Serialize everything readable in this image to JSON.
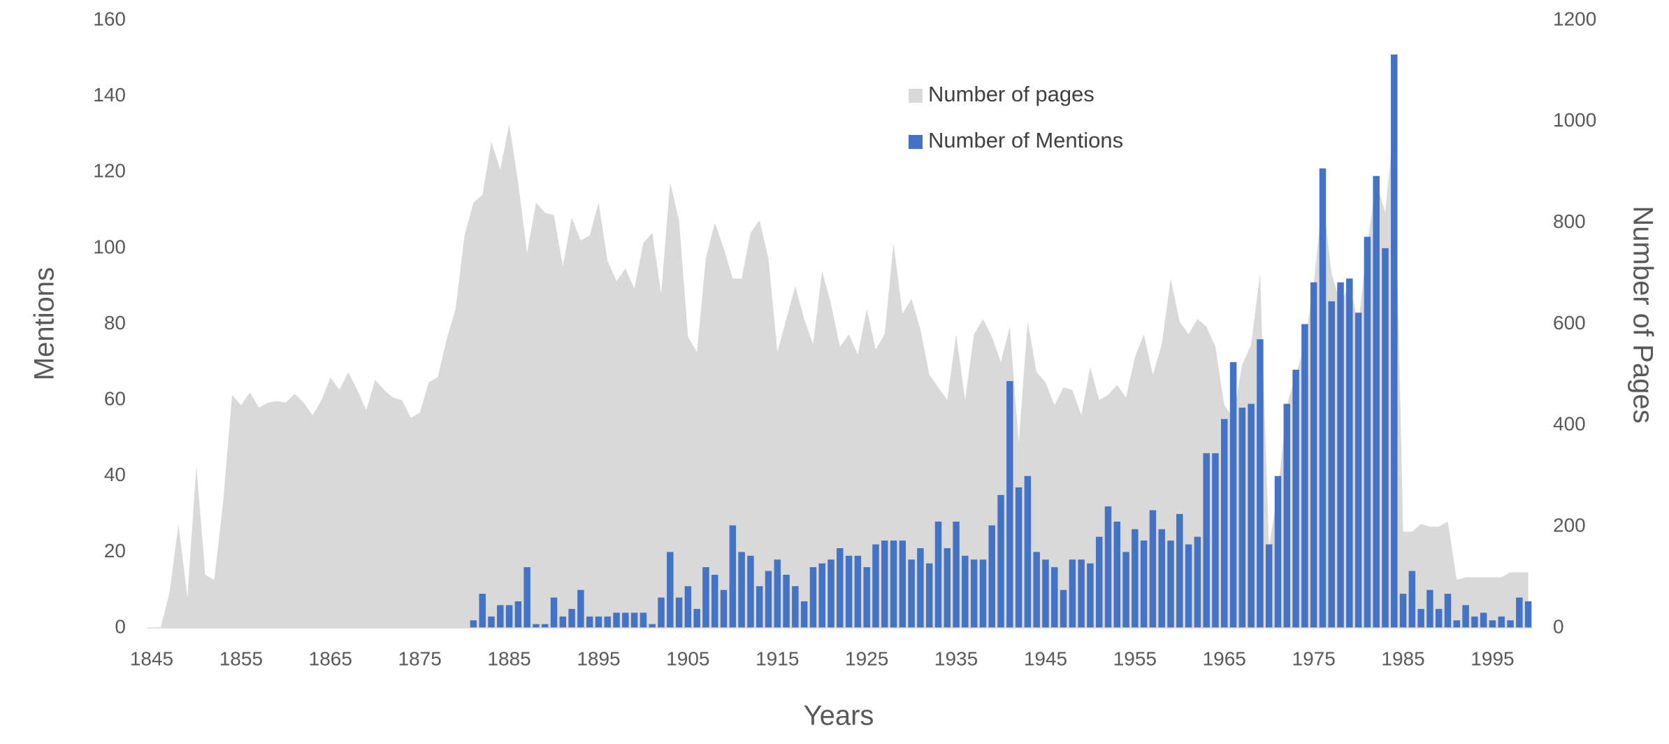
{
  "chart_data": {
    "type": "combo",
    "x_label": "Years",
    "y_label": "Mentions",
    "y2_label": "Number of Pages",
    "x": [
      1845,
      1846,
      1847,
      1848,
      1849,
      1850,
      1851,
      1852,
      1853,
      1854,
      1855,
      1856,
      1857,
      1858,
      1859,
      1860,
      1861,
      1862,
      1863,
      1864,
      1865,
      1866,
      1867,
      1868,
      1869,
      1870,
      1871,
      1872,
      1873,
      1874,
      1875,
      1876,
      1877,
      1878,
      1879,
      1880,
      1881,
      1882,
      1883,
      1884,
      1885,
      1886,
      1887,
      1888,
      1889,
      1890,
      1891,
      1892,
      1893,
      1894,
      1895,
      1896,
      1897,
      1898,
      1899,
      1900,
      1901,
      1902,
      1903,
      1904,
      1905,
      1906,
      1907,
      1908,
      1909,
      1910,
      1911,
      1912,
      1913,
      1914,
      1915,
      1916,
      1917,
      1918,
      1919,
      1920,
      1921,
      1922,
      1923,
      1924,
      1925,
      1926,
      1927,
      1928,
      1929,
      1930,
      1931,
      1932,
      1933,
      1934,
      1935,
      1936,
      1937,
      1938,
      1939,
      1940,
      1941,
      1942,
      1943,
      1944,
      1945,
      1946,
      1947,
      1948,
      1949,
      1950,
      1951,
      1952,
      1953,
      1954,
      1955,
      1956,
      1957,
      1958,
      1959,
      1960,
      1961,
      1962,
      1963,
      1964,
      1965,
      1966,
      1967,
      1968,
      1969,
      1970,
      1971,
      1972,
      1973,
      1974,
      1975,
      1976,
      1977,
      1978,
      1979,
      1980,
      1981,
      1982,
      1983,
      1984,
      1985,
      1986,
      1987,
      1988,
      1989,
      1990,
      1991,
      1992,
      1993,
      1994,
      1995,
      1996,
      1997,
      1998,
      1999
    ],
    "series": [
      {
        "name": "Number of pages",
        "type": "area",
        "axis": "y2",
        "color": "#d9d9d9",
        "values": [
          0,
          0,
          70,
          205,
          60,
          320,
          105,
          95,
          250,
          460,
          440,
          465,
          435,
          445,
          448,
          445,
          462,
          445,
          420,
          450,
          495,
          470,
          505,
          470,
          430,
          490,
          470,
          455,
          450,
          415,
          425,
          485,
          495,
          570,
          630,
          775,
          840,
          855,
          960,
          905,
          995,
          880,
          740,
          840,
          820,
          815,
          715,
          810,
          765,
          775,
          840,
          725,
          685,
          710,
          670,
          760,
          780,
          660,
          880,
          805,
          575,
          545,
          730,
          800,
          750,
          690,
          690,
          780,
          805,
          730,
          545,
          610,
          675,
          610,
          560,
          705,
          640,
          555,
          580,
          540,
          630,
          550,
          580,
          760,
          620,
          650,
          590,
          500,
          475,
          450,
          580,
          450,
          580,
          610,
          575,
          525,
          595,
          365,
          605,
          505,
          485,
          440,
          475,
          470,
          420,
          515,
          450,
          460,
          480,
          455,
          535,
          580,
          500,
          560,
          690,
          605,
          580,
          610,
          595,
          555,
          440,
          415,
          520,
          560,
          700,
          160,
          270,
          440,
          500,
          560,
          680,
          850,
          700,
          640,
          680,
          600,
          760,
          880,
          820,
          1000,
          190,
          190,
          205,
          200,
          200,
          210,
          95,
          100,
          100,
          100,
          100,
          100,
          110,
          110,
          110
        ]
      },
      {
        "name": "Number of Mentions",
        "type": "bar",
        "axis": "y",
        "color": "#4472c4",
        "values": [
          0,
          0,
          0,
          0,
          0,
          0,
          0,
          0,
          0,
          0,
          0,
          0,
          0,
          0,
          0,
          0,
          0,
          0,
          0,
          0,
          0,
          0,
          0,
          0,
          0,
          0,
          0,
          0,
          0,
          0,
          0,
          0,
          0,
          0,
          0,
          0,
          2,
          9,
          3,
          6,
          6,
          7,
          16,
          1,
          1,
          8,
          3,
          5,
          10,
          3,
          3,
          3,
          4,
          4,
          4,
          4,
          1,
          8,
          20,
          8,
          11,
          5,
          16,
          14,
          10,
          27,
          20,
          19,
          11,
          15,
          18,
          14,
          11,
          7,
          16,
          17,
          18,
          21,
          19,
          19,
          16,
          22,
          23,
          23,
          23,
          18,
          21,
          17,
          28,
          21,
          28,
          19,
          18,
          18,
          27,
          35,
          65,
          37,
          40,
          20,
          18,
          16,
          10,
          18,
          18,
          17,
          24,
          32,
          28,
          20,
          26,
          23,
          31,
          26,
          23,
          30,
          22,
          24,
          46,
          46,
          55,
          70,
          58,
          59,
          76,
          22,
          40,
          59,
          68,
          80,
          91,
          121,
          86,
          91,
          92,
          83,
          103,
          119,
          100,
          151,
          9,
          15,
          5,
          10,
          5,
          9,
          2,
          6,
          3,
          4,
          2,
          3,
          2,
          8,
          7
        ]
      }
    ],
    "xlim": [
      1844.5,
      1999.5
    ],
    "xticks": [
      1845,
      1855,
      1865,
      1875,
      1885,
      1895,
      1905,
      1915,
      1925,
      1935,
      1945,
      1955,
      1965,
      1975,
      1985,
      1995
    ],
    "ylim": [
      0,
      160
    ],
    "yticks": [
      0,
      20,
      40,
      60,
      80,
      100,
      120,
      140,
      160
    ],
    "y2lim": [
      0,
      1200
    ],
    "y2ticks": [
      0,
      200,
      400,
      600,
      800,
      1000,
      1200
    ],
    "grid": false,
    "legend": "top-center"
  }
}
